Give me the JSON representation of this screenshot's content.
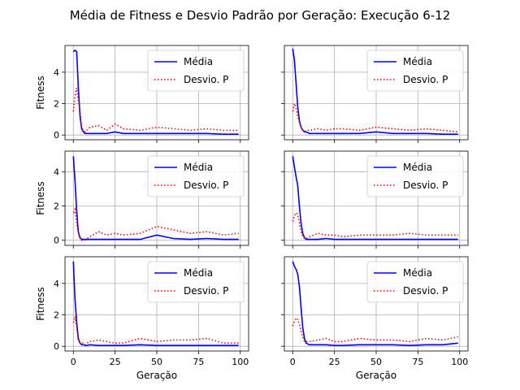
{
  "title": "Média de Fitness e Desvio Padrão por Geração: Execução 6-12",
  "colors": {
    "media": "#0000ff",
    "desvio": "#ff0000",
    "grid": "#b0b0b0"
  },
  "chart_data": [
    {
      "type": "line",
      "panel": "row1-col1",
      "ylabel": "Fitness",
      "xlabel": "",
      "xlim": [
        -5,
        105
      ],
      "ylim": [
        -0.3,
        5.7
      ],
      "yticks": [
        0,
        2,
        4
      ],
      "xticks": [
        0,
        25,
        50,
        75,
        100
      ],
      "legend": "top-right",
      "x": [
        0,
        1,
        2,
        3,
        4,
        5,
        6,
        7,
        8,
        10,
        15,
        20,
        25,
        30,
        40,
        50,
        60,
        70,
        80,
        90,
        99
      ],
      "series": [
        {
          "name": "Média",
          "values": [
            5.3,
            5.4,
            5.3,
            3.0,
            1.2,
            0.4,
            0.2,
            0.1,
            0.1,
            0.1,
            0.1,
            0.1,
            0.2,
            0.1,
            0.1,
            0.1,
            0.1,
            0.1,
            0.1,
            0.05,
            0.05
          ]
        },
        {
          "name": "Desvio. P",
          "values": [
            1.5,
            2.5,
            3.0,
            2.2,
            1.5,
            0.5,
            0.3,
            0.2,
            0.3,
            0.5,
            0.6,
            0.3,
            0.7,
            0.4,
            0.3,
            0.5,
            0.4,
            0.3,
            0.4,
            0.3,
            0.3
          ]
        }
      ]
    },
    {
      "type": "line",
      "panel": "row1-col2",
      "ylabel": "",
      "xlabel": "",
      "xlim": [
        -5,
        105
      ],
      "ylim": [
        -0.3,
        5.7
      ],
      "yticks": [
        0,
        2,
        4
      ],
      "xticks": [
        0,
        25,
        50,
        75,
        100
      ],
      "legend": "top-right",
      "x": [
        0,
        1,
        2,
        3,
        4,
        5,
        6,
        7,
        8,
        10,
        15,
        20,
        25,
        30,
        40,
        50,
        60,
        70,
        80,
        90,
        99
      ],
      "series": [
        {
          "name": "Média",
          "values": [
            5.5,
            4.8,
            3.3,
            1.8,
            0.9,
            0.5,
            0.3,
            0.2,
            0.2,
            0.1,
            0.1,
            0.1,
            0.1,
            0.1,
            0.1,
            0.2,
            0.1,
            0.1,
            0.1,
            0.05,
            0.05
          ]
        },
        {
          "name": "Desvio. P",
          "values": [
            1.5,
            2.0,
            1.7,
            1.2,
            0.8,
            0.5,
            0.3,
            0.2,
            0.3,
            0.3,
            0.4,
            0.3,
            0.4,
            0.4,
            0.3,
            0.5,
            0.4,
            0.3,
            0.4,
            0.3,
            0.2
          ]
        }
      ]
    },
    {
      "type": "line",
      "panel": "row2-col1",
      "ylabel": "Fitness",
      "xlabel": "",
      "xlim": [
        -5,
        105
      ],
      "ylim": [
        -0.3,
        5.2
      ],
      "yticks": [
        0,
        2,
        4
      ],
      "xticks": [
        0,
        25,
        50,
        75,
        100
      ],
      "legend": "top-right",
      "x": [
        0,
        1,
        2,
        3,
        4,
        5,
        6,
        7,
        8,
        10,
        15,
        20,
        25,
        30,
        40,
        50,
        60,
        70,
        80,
        90,
        99
      ],
      "series": [
        {
          "name": "Média",
          "values": [
            4.9,
            3.5,
            1.7,
            0.5,
            0.15,
            0.05,
            0.05,
            0.05,
            0.05,
            0.05,
            0.05,
            0.05,
            0.05,
            0.05,
            0.05,
            0.3,
            0.1,
            0.05,
            0.1,
            0.05,
            0.05
          ]
        },
        {
          "name": "Desvio. P",
          "values": [
            1.6,
            1.8,
            1.0,
            0.4,
            0.1,
            0.0,
            0.0,
            0.0,
            0.1,
            0.2,
            0.5,
            0.3,
            0.4,
            0.3,
            0.4,
            0.8,
            0.6,
            0.4,
            0.5,
            0.3,
            0.4
          ]
        }
      ]
    },
    {
      "type": "line",
      "panel": "row2-col2",
      "ylabel": "",
      "xlabel": "",
      "xlim": [
        -5,
        105
      ],
      "ylim": [
        -0.3,
        5.2
      ],
      "yticks": [
        0,
        2,
        4
      ],
      "xticks": [
        0,
        25,
        50,
        75,
        100
      ],
      "legend": "top-right",
      "x": [
        0,
        1,
        2,
        3,
        4,
        5,
        6,
        7,
        8,
        10,
        15,
        20,
        25,
        30,
        40,
        50,
        60,
        70,
        80,
        90,
        99
      ],
      "series": [
        {
          "name": "Média",
          "values": [
            4.9,
            4.3,
            3.7,
            3.2,
            2.0,
            1.0,
            0.4,
            0.15,
            0.05,
            0.05,
            0.05,
            0.1,
            0.05,
            0.05,
            0.05,
            0.05,
            0.05,
            0.05,
            0.05,
            0.05,
            0.05
          ]
        },
        {
          "name": "Desvio. P",
          "values": [
            1.1,
            1.4,
            1.6,
            1.5,
            1.0,
            0.5,
            0.2,
            0.1,
            0.1,
            0.2,
            0.4,
            0.3,
            0.3,
            0.2,
            0.3,
            0.3,
            0.3,
            0.4,
            0.3,
            0.3,
            0.3
          ]
        }
      ]
    },
    {
      "type": "line",
      "panel": "row3-col1",
      "ylabel": "Fitness",
      "xlabel": "Geração",
      "xlim": [
        -5,
        105
      ],
      "ylim": [
        -0.3,
        5.7
      ],
      "yticks": [
        0,
        2,
        4
      ],
      "xticks": [
        0,
        25,
        50,
        75,
        100
      ],
      "legend": "top-right",
      "x": [
        0,
        1,
        2,
        3,
        4,
        5,
        6,
        7,
        8,
        10,
        15,
        20,
        25,
        30,
        40,
        50,
        60,
        70,
        80,
        90,
        99
      ],
      "series": [
        {
          "name": "Média",
          "values": [
            5.4,
            3.0,
            1.5,
            0.5,
            0.2,
            0.1,
            0.1,
            0.05,
            0.05,
            0.1,
            0.05,
            0.05,
            0.05,
            0.05,
            0.1,
            0.05,
            0.05,
            0.05,
            0.05,
            0.05,
            0.05
          ]
        },
        {
          "name": "Desvio. P",
          "values": [
            1.5,
            1.9,
            1.2,
            0.4,
            0.2,
            0.2,
            0.2,
            0.1,
            0.2,
            0.3,
            0.4,
            0.3,
            0.2,
            0.2,
            0.5,
            0.3,
            0.4,
            0.4,
            0.5,
            0.2,
            0.2
          ]
        }
      ]
    },
    {
      "type": "line",
      "panel": "row3-col2",
      "ylabel": "",
      "xlabel": "Geração",
      "xlim": [
        -5,
        105
      ],
      "ylim": [
        -0.3,
        5.7
      ],
      "yticks": [
        0,
        2,
        4
      ],
      "xticks": [
        0,
        25,
        50,
        75,
        100
      ],
      "legend": "top-right",
      "x": [
        0,
        1,
        2,
        3,
        4,
        5,
        6,
        7,
        8,
        10,
        15,
        20,
        25,
        30,
        40,
        50,
        60,
        70,
        80,
        90,
        99
      ],
      "series": [
        {
          "name": "Média",
          "values": [
            5.4,
            5.1,
            4.9,
            4.6,
            3.8,
            2.5,
            1.2,
            0.5,
            0.2,
            0.1,
            0.1,
            0.1,
            0.05,
            0.05,
            0.1,
            0.1,
            0.1,
            0.05,
            0.1,
            0.1,
            0.2
          ]
        },
        {
          "name": "Desvio. P",
          "values": [
            1.3,
            1.6,
            1.8,
            1.7,
            1.4,
            1.0,
            0.6,
            0.3,
            0.3,
            0.3,
            0.4,
            0.5,
            0.3,
            0.3,
            0.5,
            0.4,
            0.4,
            0.3,
            0.5,
            0.4,
            0.6
          ]
        }
      ]
    }
  ]
}
